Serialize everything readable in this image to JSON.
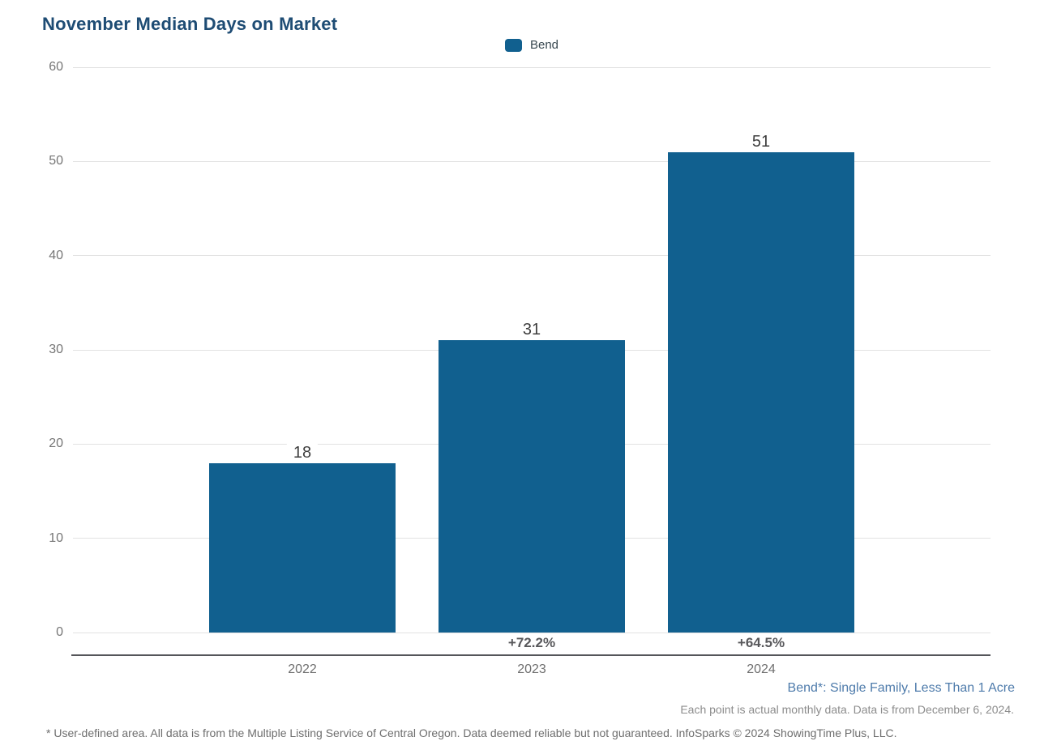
{
  "title": "November Median Days on Market",
  "legend": {
    "label": "Bend"
  },
  "colors": {
    "bar": "#11608F",
    "title": "#1E4C74",
    "gridline": "#E2E2E2",
    "axis_line": "#55565A",
    "tick_label": "#757575",
    "value_label": "#3F3F3F",
    "pct_label": "#58585B",
    "series_definition_blue": "#4E7BAB",
    "note_gray": "#8C8C8C",
    "disclaimer_gray": "#6E6E6E"
  },
  "chart_data": {
    "type": "bar",
    "title": "November Median Days on Market",
    "categories": [
      "2022",
      "2023",
      "2024"
    ],
    "series": [
      {
        "name": "Bend",
        "color": "#11608F",
        "values": [
          18,
          31,
          51
        ]
      }
    ],
    "value_labels": [
      "18",
      "31",
      "51"
    ],
    "change_labels": [
      "",
      "+72.2%",
      "+64.5%"
    ],
    "xlabel": "",
    "ylabel": "",
    "ylim": [
      0,
      60
    ],
    "yticks": [
      0,
      10,
      20,
      30,
      40,
      50,
      60
    ],
    "grid": true,
    "legend_position": "top-center"
  },
  "footer": {
    "series_definition": "Bend*: Single Family, Less Than 1 Acre",
    "data_note": "Each point is actual monthly data. Data is from December 6, 2024.",
    "disclaimer": "* User-defined area. All data is from the Multiple Listing Service of Central Oregon. Data deemed reliable but not guaranteed. InfoSparks © 2024 ShowingTime Plus, LLC."
  }
}
